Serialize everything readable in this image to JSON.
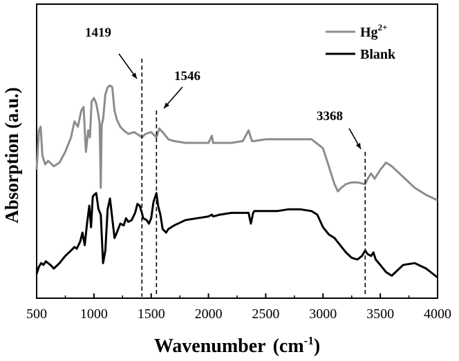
{
  "chart_data": {
    "type": "line",
    "xlabel_main": "Wavenumber",
    "xlabel_unit_base": "(cm",
    "xlabel_unit_exp": "-1",
    "xlabel_unit_close": ")",
    "ylabel": "Absorption (a.u.)",
    "xlim": [
      500,
      4000
    ],
    "xticks": [
      "500",
      "1000",
      "1500",
      "2000",
      "2500",
      "3000",
      "3500",
      "4000"
    ],
    "legend_position": "top-right",
    "series": [
      {
        "name": "Hg",
        "name_sup": "2+",
        "color": "#8c8c8c",
        "x": [
          500,
          520,
          535,
          550,
          575,
          600,
          650,
          700,
          750,
          800,
          830,
          860,
          890,
          910,
          930,
          950,
          965,
          980,
          1000,
          1020,
          1035,
          1050,
          1060,
          1068,
          1080,
          1100,
          1120,
          1140,
          1160,
          1180,
          1200,
          1230,
          1260,
          1300,
          1350,
          1400,
          1419,
          1450,
          1500,
          1530,
          1546,
          1570,
          1600,
          1650,
          1700,
          1800,
          1900,
          2000,
          2030,
          2040,
          2100,
          2200,
          2300,
          2350,
          2380,
          2400,
          2500,
          2600,
          2700,
          2800,
          2900,
          3000,
          3050,
          3100,
          3130,
          3160,
          3200,
          3250,
          3300,
          3368,
          3390,
          3420,
          3450,
          3500,
          3550,
          3600,
          3700,
          3800,
          3900,
          4000
        ],
        "y": [
          0.6,
          0.82,
          0.84,
          0.68,
          0.63,
          0.65,
          0.62,
          0.64,
          0.7,
          0.78,
          0.87,
          0.84,
          0.93,
          0.95,
          0.7,
          0.82,
          0.78,
          0.98,
          1.0,
          0.97,
          0.92,
          0.86,
          0.5,
          0.85,
          0.88,
          1.02,
          1.06,
          1.07,
          1.06,
          0.93,
          0.88,
          0.84,
          0.82,
          0.8,
          0.81,
          0.79,
          0.78,
          0.8,
          0.81,
          0.79,
          0.78,
          0.83,
          0.81,
          0.77,
          0.76,
          0.75,
          0.75,
          0.75,
          0.79,
          0.75,
          0.75,
          0.75,
          0.76,
          0.82,
          0.76,
          0.76,
          0.77,
          0.77,
          0.77,
          0.77,
          0.77,
          0.72,
          0.62,
          0.52,
          0.48,
          0.5,
          0.52,
          0.53,
          0.53,
          0.52,
          0.55,
          0.58,
          0.55,
          0.6,
          0.64,
          0.62,
          0.56,
          0.5,
          0.46,
          0.43
        ]
      },
      {
        "name": "Blank",
        "color": "#000000",
        "x": [
          500,
          520,
          540,
          560,
          580,
          600,
          620,
          650,
          700,
          750,
          800,
          830,
          850,
          880,
          900,
          920,
          940,
          960,
          975,
          990,
          1000,
          1020,
          1040,
          1060,
          1080,
          1100,
          1120,
          1140,
          1160,
          1180,
          1200,
          1230,
          1260,
          1280,
          1300,
          1330,
          1360,
          1380,
          1400,
          1419,
          1430,
          1460,
          1480,
          1500,
          1520,
          1546,
          1560,
          1580,
          1600,
          1630,
          1650,
          1700,
          1800,
          1900,
          2000,
          2030,
          2040,
          2100,
          2200,
          2300,
          2350,
          2370,
          2390,
          2400,
          2500,
          2600,
          2700,
          2800,
          2900,
          2950,
          3000,
          3050,
          3100,
          3150,
          3200,
          3250,
          3300,
          3340,
          3368,
          3390,
          3420,
          3440,
          3460,
          3500,
          3550,
          3600,
          3650,
          3700,
          3800,
          3900,
          4000
        ],
        "y": [
          0.02,
          0.06,
          0.08,
          0.07,
          0.09,
          0.08,
          0.07,
          0.05,
          0.08,
          0.12,
          0.15,
          0.17,
          0.16,
          0.2,
          0.25,
          0.18,
          0.3,
          0.4,
          0.28,
          0.45,
          0.46,
          0.47,
          0.38,
          0.35,
          0.08,
          0.15,
          0.38,
          0.44,
          0.33,
          0.22,
          0.25,
          0.3,
          0.29,
          0.33,
          0.31,
          0.32,
          0.36,
          0.41,
          0.4,
          0.36,
          0.33,
          0.32,
          0.3,
          0.33,
          0.42,
          0.47,
          0.4,
          0.35,
          0.27,
          0.25,
          0.27,
          0.29,
          0.32,
          0.33,
          0.34,
          0.35,
          0.34,
          0.35,
          0.36,
          0.36,
          0.36,
          0.3,
          0.36,
          0.37,
          0.37,
          0.37,
          0.38,
          0.38,
          0.37,
          0.35,
          0.28,
          0.24,
          0.22,
          0.18,
          0.14,
          0.11,
          0.1,
          0.12,
          0.15,
          0.13,
          0.12,
          0.14,
          0.1,
          0.07,
          0.03,
          0.01,
          0.04,
          0.07,
          0.08,
          0.05,
          0.0
        ]
      }
    ],
    "annotations": [
      {
        "label": "1419",
        "x": 1419
      },
      {
        "label": "1546",
        "x": 1546
      },
      {
        "label": "3368",
        "x": 3368
      }
    ]
  }
}
